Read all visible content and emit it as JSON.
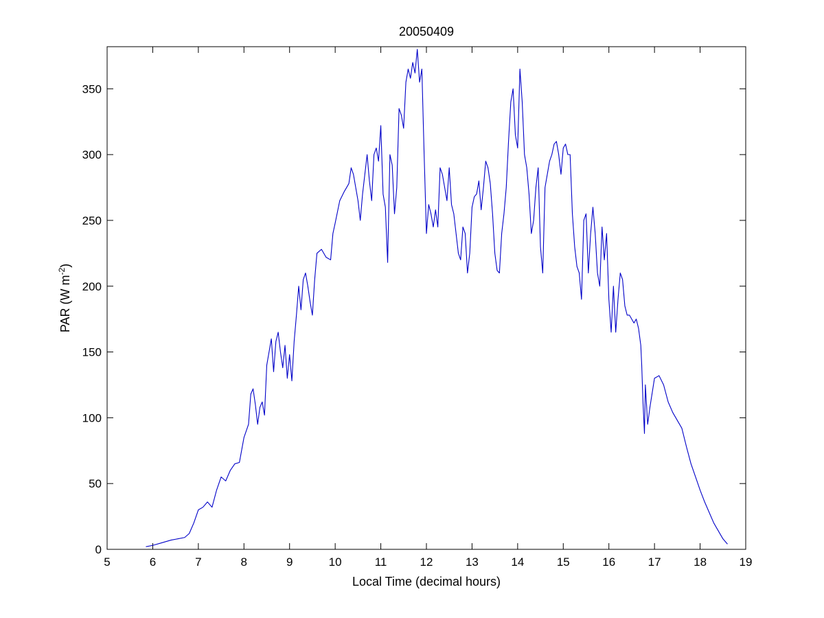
{
  "chart_data": {
    "type": "line",
    "title": "20050409",
    "xlabel": "Local Time (decimal hours)",
    "ylabel_main": "PAR (W m",
    "ylabel_sup": "-2",
    "ylabel_close": ")",
    "xlim": [
      5,
      19
    ],
    "ylim": [
      0,
      382
    ],
    "xticks": [
      "5",
      "6",
      "7",
      "8",
      "9",
      "10",
      "11",
      "12",
      "13",
      "14",
      "15",
      "16",
      "17",
      "18",
      "19"
    ],
    "yticks": [
      "0",
      "50",
      "100",
      "150",
      "200",
      "250",
      "300",
      "350"
    ],
    "grid": false,
    "line_color": "#0000c8",
    "series": [
      {
        "x": [
          5.85,
          6.0,
          6.2,
          6.4,
          6.55,
          6.7,
          6.8,
          6.9,
          7.0,
          7.1,
          7.2,
          7.3,
          7.4,
          7.5,
          7.6,
          7.7,
          7.8,
          7.9,
          8.0,
          8.05,
          8.1,
          8.15,
          8.2,
          8.25,
          8.3,
          8.35,
          8.4,
          8.45,
          8.5,
          8.55,
          8.6,
          8.65,
          8.7,
          8.75,
          8.8,
          8.85,
          8.9,
          8.95,
          9.0,
          9.05,
          9.1,
          9.15,
          9.2,
          9.25,
          9.3,
          9.35,
          9.4,
          9.45,
          9.5,
          9.55,
          9.6,
          9.7,
          9.8,
          9.9,
          9.95,
          10.0,
          10.1,
          10.2,
          10.3,
          10.35,
          10.4,
          10.5,
          10.55,
          10.6,
          10.7,
          10.75,
          10.8,
          10.85,
          10.9,
          10.95,
          11.0,
          11.05,
          11.1,
          11.15,
          11.2,
          11.25,
          11.3,
          11.35,
          11.4,
          11.45,
          11.5,
          11.55,
          11.6,
          11.65,
          11.7,
          11.75,
          11.8,
          11.85,
          11.9,
          11.95,
          12.0,
          12.05,
          12.1,
          12.15,
          12.2,
          12.25,
          12.3,
          12.35,
          12.4,
          12.45,
          12.5,
          12.55,
          12.6,
          12.65,
          12.7,
          12.75,
          12.8,
          12.85,
          12.9,
          12.95,
          13.0,
          13.05,
          13.1,
          13.15,
          13.2,
          13.25,
          13.3,
          13.35,
          13.4,
          13.45,
          13.5,
          13.55,
          13.6,
          13.65,
          13.7,
          13.75,
          13.8,
          13.85,
          13.9,
          13.95,
          14.0,
          14.05,
          14.1,
          14.15,
          14.2,
          14.25,
          14.3,
          14.35,
          14.4,
          14.45,
          14.5,
          14.55,
          14.6,
          14.65,
          14.7,
          14.75,
          14.8,
          14.85,
          14.9,
          14.95,
          15.0,
          15.05,
          15.1,
          15.15,
          15.2,
          15.25,
          15.3,
          15.35,
          15.4,
          15.45,
          15.5,
          15.55,
          15.6,
          15.65,
          15.7,
          15.75,
          15.8,
          15.85,
          15.9,
          15.95,
          16.0,
          16.05,
          16.1,
          16.15,
          16.2,
          16.25,
          16.3,
          16.35,
          16.4,
          16.45,
          16.5,
          16.55,
          16.6,
          16.65,
          16.7,
          16.72,
          16.75,
          16.78,
          16.8,
          16.85,
          16.9,
          17.0,
          17.1,
          17.2,
          17.3,
          17.4,
          17.5,
          17.6,
          17.7,
          17.8,
          17.9,
          18.0,
          18.1,
          18.2,
          18.3,
          18.4,
          18.5,
          18.6
        ],
        "y": [
          2,
          3,
          5,
          7,
          8,
          9,
          12,
          20,
          30,
          32,
          36,
          32,
          45,
          55,
          52,
          60,
          65,
          66,
          85,
          90,
          95,
          118,
          122,
          110,
          95,
          108,
          112,
          102,
          140,
          150,
          160,
          135,
          158,
          165,
          150,
          138,
          155,
          130,
          148,
          128,
          158,
          178,
          200,
          182,
          205,
          210,
          200,
          188,
          178,
          205,
          225,
          228,
          222,
          220,
          240,
          248,
          265,
          272,
          278,
          290,
          285,
          265,
          250,
          270,
          300,
          280,
          265,
          300,
          305,
          295,
          322,
          270,
          260,
          218,
          300,
          292,
          255,
          275,
          335,
          330,
          320,
          355,
          365,
          358,
          370,
          362,
          380,
          355,
          365,
          300,
          240,
          262,
          255,
          245,
          258,
          245,
          290,
          285,
          275,
          265,
          290,
          262,
          255,
          240,
          225,
          220,
          245,
          240,
          210,
          225,
          260,
          268,
          270,
          280,
          258,
          275,
          295,
          290,
          278,
          255,
          225,
          212,
          210,
          240,
          255,
          275,
          310,
          340,
          350,
          315,
          305,
          365,
          340,
          300,
          290,
          270,
          240,
          250,
          275,
          290,
          230,
          210,
          275,
          285,
          295,
          300,
          308,
          310,
          300,
          285,
          305,
          308,
          300,
          300,
          255,
          230,
          215,
          210,
          190,
          250,
          255,
          210,
          240,
          260,
          240,
          210,
          200,
          245,
          220,
          240,
          190,
          165,
          200,
          165,
          190,
          210,
          205,
          185,
          178,
          178,
          175,
          172,
          175,
          168,
          155,
          140,
          110,
          88,
          125,
          95,
          108,
          130,
          132,
          125,
          112,
          104,
          98,
          92,
          78,
          65,
          55,
          45,
          36,
          28,
          20,
          14,
          8,
          4
        ]
      }
    ]
  }
}
